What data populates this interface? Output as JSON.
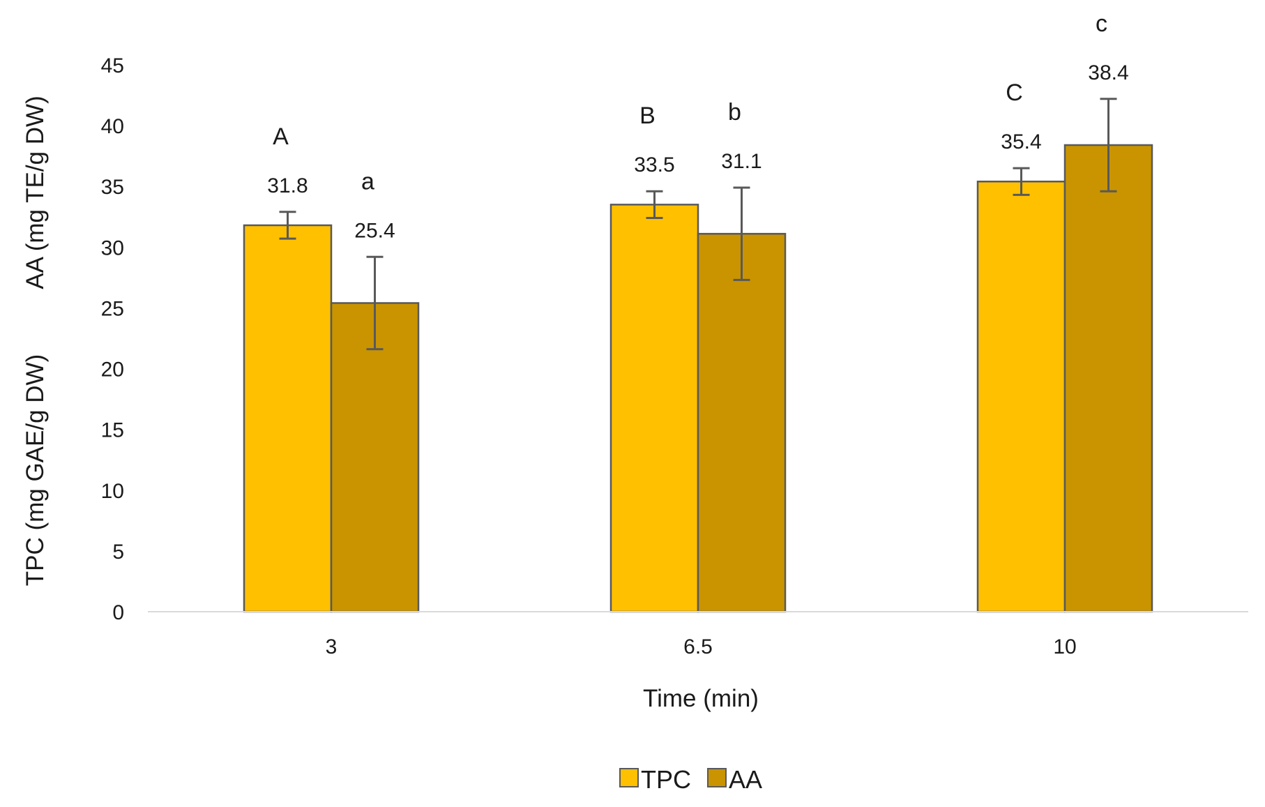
{
  "chart_data": {
    "type": "bar",
    "xlabel": "Time (min)",
    "ylabel_lines": [
      "TPC (mg GAE/g DW)",
      "AA (mg TE/g DW)"
    ],
    "ylim": [
      0,
      45
    ],
    "yticks": [
      0,
      5,
      10,
      15,
      20,
      25,
      30,
      35,
      40,
      45
    ],
    "grid": false,
    "legend": "bottom",
    "categories": [
      "3",
      "6.5",
      "10"
    ],
    "series": [
      {
        "name": "TPC",
        "color": "#FFC000",
        "values": [
          31.8,
          33.5,
          35.4
        ],
        "errors": [
          1.1,
          1.1,
          1.1
        ],
        "data_labels": [
          "31.8",
          "33.5",
          "35.4"
        ],
        "significance_letters": [
          "A",
          "B",
          "C"
        ]
      },
      {
        "name": "AA",
        "color": "#C99400",
        "values": [
          25.4,
          31.1,
          38.4
        ],
        "errors": [
          3.8,
          3.8,
          3.8
        ],
        "data_labels": [
          "25.4",
          "31.1",
          "38.4"
        ],
        "significance_letters": [
          "a",
          "b",
          "c"
        ]
      }
    ],
    "styles": {
      "bar_outline": "#595959",
      "error_bar": "#595959",
      "axis_line": "#d9d9d9"
    }
  }
}
